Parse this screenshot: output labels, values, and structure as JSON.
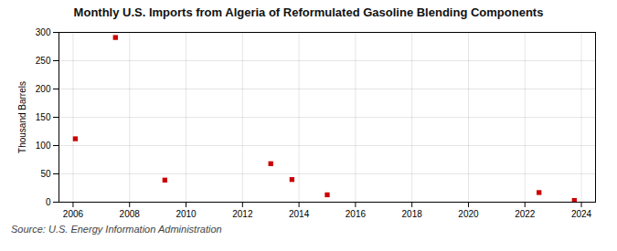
{
  "chart_data": {
    "type": "scatter",
    "title": "Monthly U.S. Imports from Algeria of Reformulated Gasoline Blending Components",
    "ylabel": "Thousand Barrels",
    "annotation": "Source: U.S. Energy Information Administration",
    "x": [
      2006.08,
      2007.5,
      2009.25,
      2013.0,
      2013.75,
      2015.0,
      2022.5,
      2023.75
    ],
    "values": [
      112,
      291,
      39,
      68,
      40,
      13,
      17,
      3
    ],
    "color": "#cc0000",
    "marker": "square",
    "xlim": [
      2005.5,
      2024.5
    ],
    "xticks": [
      2006,
      2008,
      2010,
      2012,
      2014,
      2016,
      2018,
      2020,
      2022,
      2024
    ],
    "ylim": [
      0,
      300
    ],
    "yticks": [
      0,
      50,
      100,
      150,
      200,
      250,
      300
    ],
    "grid": true
  }
}
